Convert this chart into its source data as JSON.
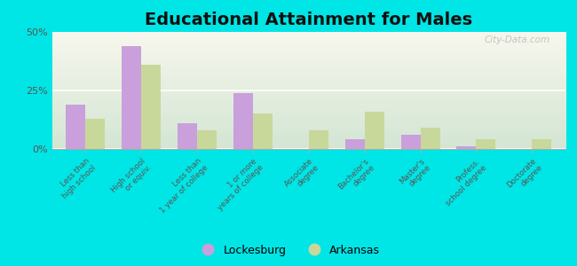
{
  "title": "Educational Attainment for Males",
  "categories": [
    "Less than\nhigh school",
    "High school\nor equiv.",
    "Less than\n1 year of college",
    "1 or more\nyears of college",
    "Associate\ndegree",
    "Bachelor's\ndegree",
    "Master's\ndegree",
    "Profess.\nschool degree",
    "Doctorate\ndegree"
  ],
  "lockesburg": [
    19,
    44,
    11,
    24,
    0,
    4,
    6,
    1,
    0
  ],
  "arkansas": [
    13,
    36,
    8,
    15,
    8,
    16,
    9,
    4,
    4
  ],
  "lockesburg_color": "#c9a0dc",
  "arkansas_color": "#c8d89a",
  "outer_bg": "#00e5e5",
  "ylim": [
    0,
    50
  ],
  "yticks": [
    0,
    25,
    50
  ],
  "ytick_labels": [
    "0%",
    "25%",
    "50%"
  ],
  "bar_width": 0.35,
  "title_fontsize": 14,
  "watermark": "City-Data.com",
  "bg_top_color": "#f8f8ee",
  "bg_bottom_color": "#ddeedd"
}
